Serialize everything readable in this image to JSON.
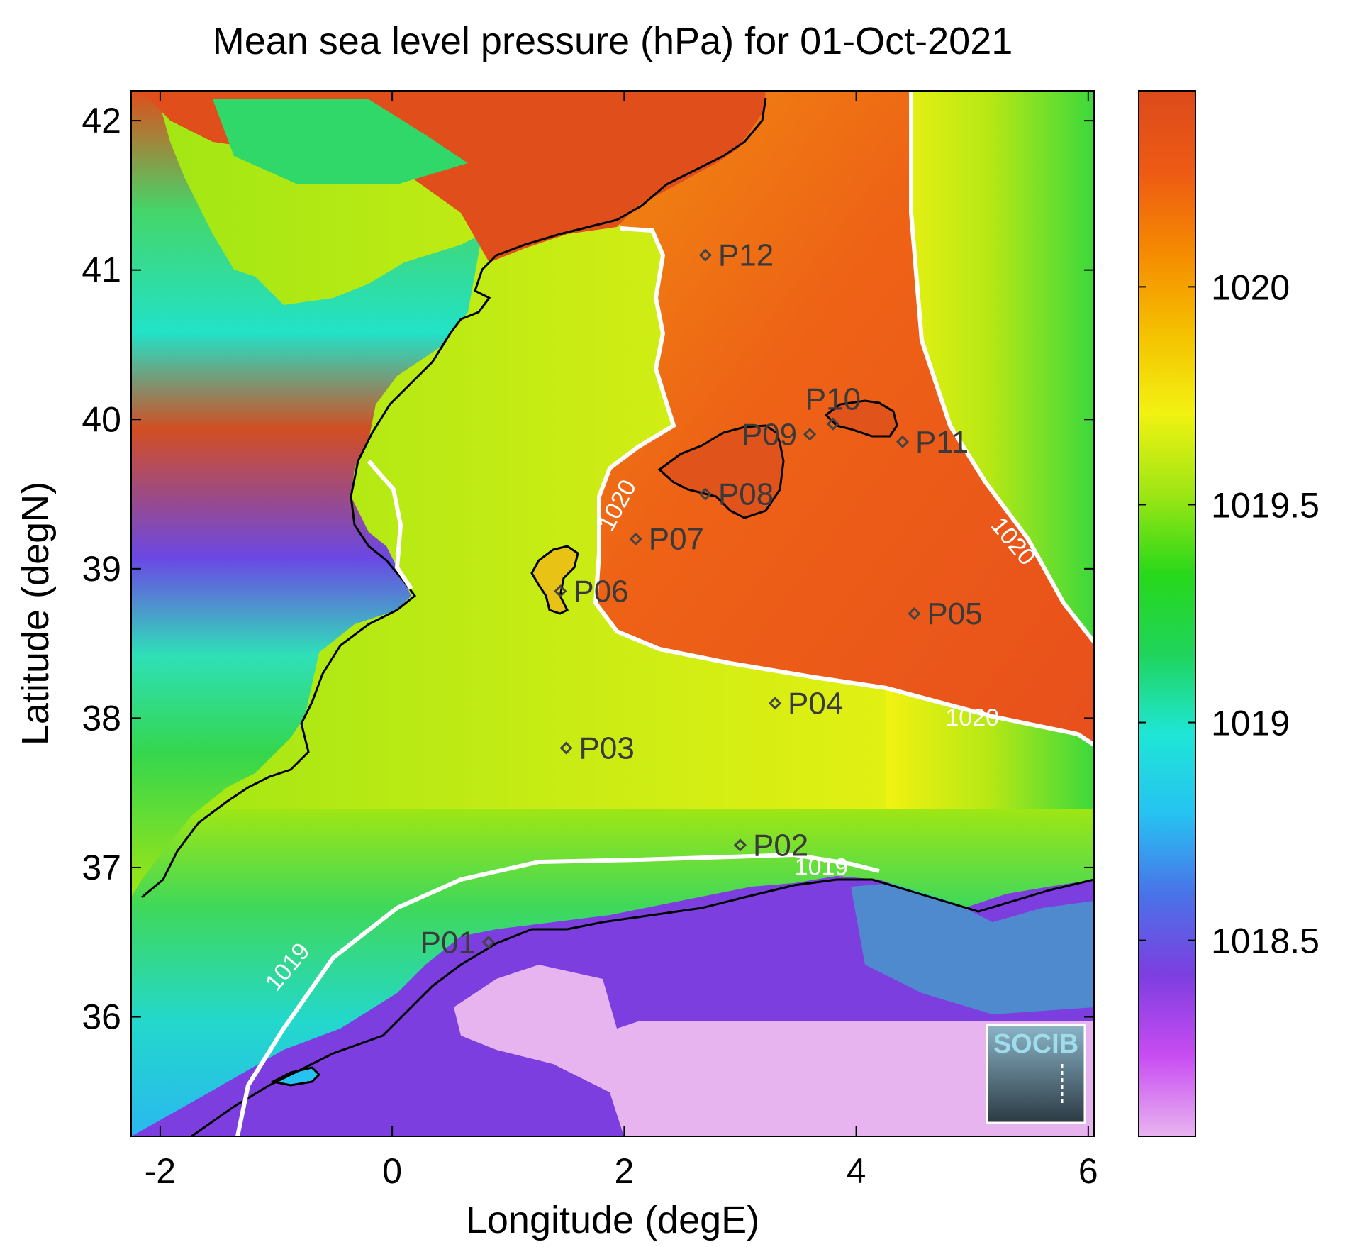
{
  "title": "Mean sea level pressure (hPa) for 01-Oct-2021",
  "xlabel": "Longitude (degE)",
  "ylabel": "Latitude (degN)",
  "x_ticks": [
    -2,
    0,
    2,
    4,
    6
  ],
  "y_ticks": [
    36,
    37,
    38,
    39,
    40,
    41,
    42
  ],
  "x_range": [
    -2.25,
    6.05
  ],
  "y_range": [
    35.2,
    42.2
  ],
  "colorbar": {
    "range": [
      1018.05,
      1020.45
    ],
    "ticks": [
      1018.5,
      1019,
      1019.5,
      1020
    ],
    "tick_labels": [
      "1018.5",
      "1019",
      "1019.5",
      "1020"
    ],
    "colors": [
      "#e8b4ef",
      "#c84cf2",
      "#7d3ee0",
      "#4a72e8",
      "#26c2f2",
      "#1fe6d6",
      "#1fd45a",
      "#28d81a",
      "#9fe614",
      "#f2f212",
      "#f5c000",
      "#f58a00",
      "#ee5a14",
      "#dc4a1c"
    ]
  },
  "contours": [
    {
      "label": "1020",
      "color": "#ffffff"
    },
    {
      "label": "1019",
      "color": "#ffffff"
    }
  ],
  "contour_labels": [
    {
      "text": "1020",
      "lon": 2.0,
      "lat": 39.4,
      "angle": -62
    },
    {
      "text": "1020",
      "lon": 5.3,
      "lat": 39.15,
      "angle": 50
    },
    {
      "text": "1020",
      "lon": 5.0,
      "lat": 37.95,
      "angle": 0
    },
    {
      "text": "1019",
      "lon": 3.7,
      "lat": 36.95,
      "angle": 0
    },
    {
      "text": "1019",
      "lon": -0.85,
      "lat": 36.3,
      "angle": -50
    }
  ],
  "stations": [
    {
      "name": "P01",
      "lon": 0.83,
      "lat": 36.5,
      "label_side": "left"
    },
    {
      "name": "P02",
      "lon": 3.0,
      "lat": 37.15,
      "label_side": "right"
    },
    {
      "name": "P03",
      "lon": 1.5,
      "lat": 37.8,
      "label_side": "right"
    },
    {
      "name": "P04",
      "lon": 3.3,
      "lat": 38.1,
      "label_side": "right"
    },
    {
      "name": "P05",
      "lon": 4.5,
      "lat": 38.7,
      "label_side": "right"
    },
    {
      "name": "P06",
      "lon": 1.45,
      "lat": 38.85,
      "label_side": "right"
    },
    {
      "name": "P07",
      "lon": 2.1,
      "lat": 39.2,
      "label_side": "right"
    },
    {
      "name": "P08",
      "lon": 2.7,
      "lat": 39.5,
      "label_side": "right"
    },
    {
      "name": "P09",
      "lon": 3.6,
      "lat": 39.9,
      "label_side": "left"
    },
    {
      "name": "P10",
      "lon": 3.8,
      "lat": 39.97,
      "label_side": "above"
    },
    {
      "name": "P11",
      "lon": 4.4,
      "lat": 39.85,
      "label_side": "right"
    },
    {
      "name": "P12",
      "lon": 2.7,
      "lat": 41.1,
      "label_side": "right"
    }
  ],
  "logo": {
    "text": "SOCIB"
  }
}
